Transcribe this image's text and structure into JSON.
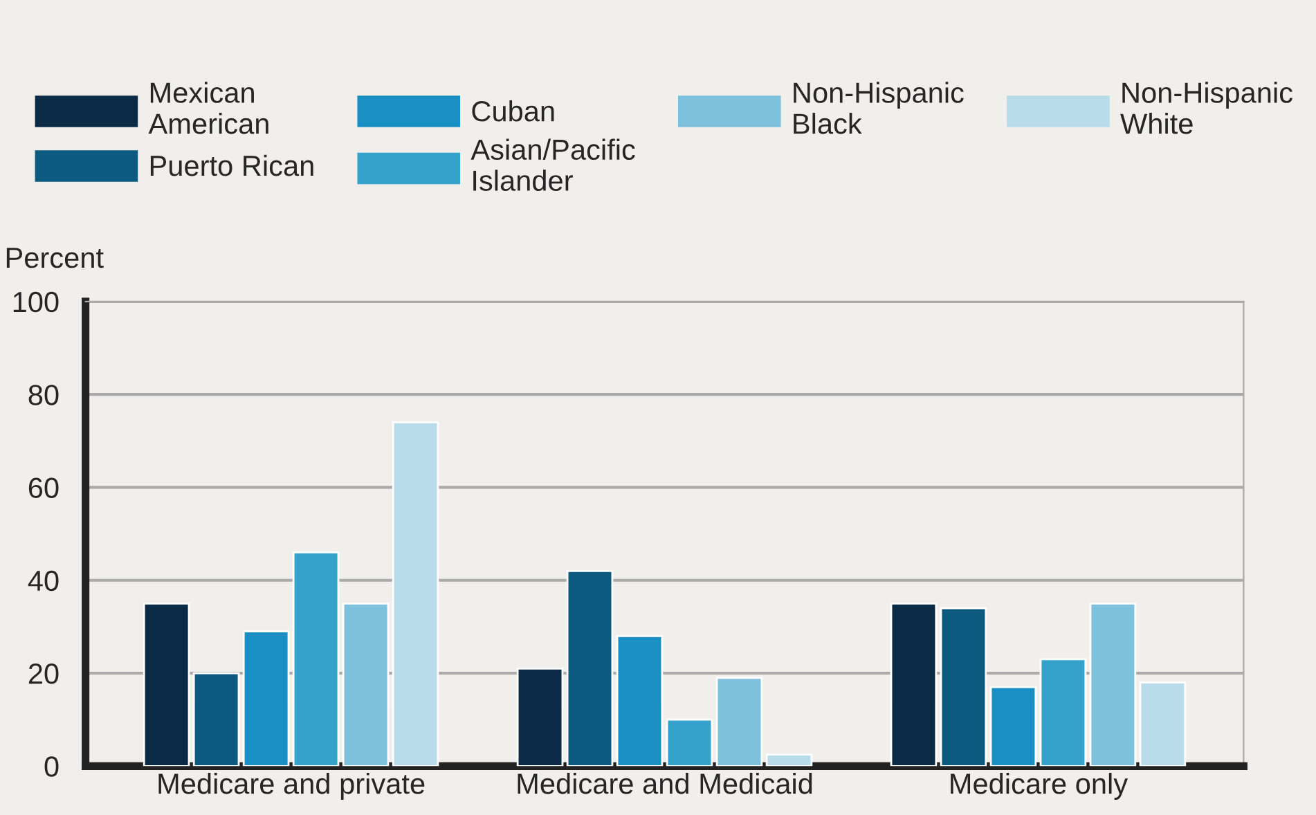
{
  "chart_data": {
    "type": "bar",
    "ylabel": "Percent",
    "categories": [
      "Medicare and private",
      "Medicare and Medicaid",
      "Medicare only"
    ],
    "series": [
      {
        "name": "Mexican\nAmerican",
        "color": "#0a2a45",
        "values": [
          35,
          21,
          35
        ]
      },
      {
        "name": "Puerto Rican",
        "color": "#0d5a80",
        "values": [
          20,
          42,
          34
        ]
      },
      {
        "name": "Cuban",
        "color": "#1a8fc4",
        "values": [
          29,
          28,
          17
        ]
      },
      {
        "name": "Asian/Pacific\nIslander",
        "color": "#35a2cc",
        "values": [
          46,
          10,
          23
        ]
      },
      {
        "name": "Non-Hispanic\nBlack",
        "color": "#7ec1dd",
        "values": [
          35,
          19,
          35
        ]
      },
      {
        "name": "Non-Hispanic\nWhite",
        "color": "#b8dcea",
        "values": [
          74,
          2.5,
          18
        ]
      }
    ],
    "ylim": [
      0,
      100
    ],
    "yticks": [
      0,
      20,
      40,
      60,
      80,
      100
    ],
    "grid": "y",
    "legend": "top"
  }
}
